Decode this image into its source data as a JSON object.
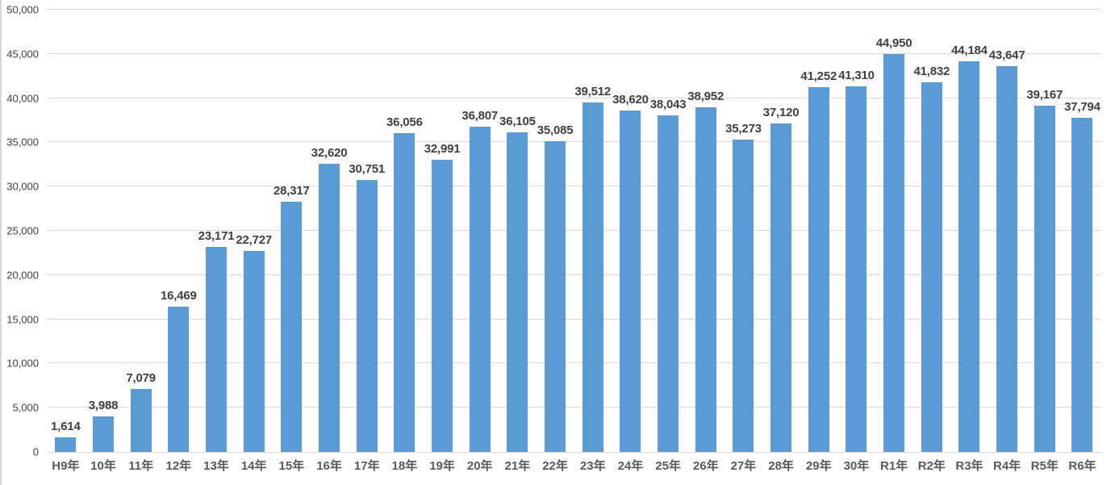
{
  "chart_data": {
    "type": "bar",
    "title": "",
    "xlabel": "",
    "ylabel": "",
    "categories": [
      "H9年",
      "10年",
      "11年",
      "12年",
      "13年",
      "14年",
      "15年",
      "16年",
      "17年",
      "18年",
      "19年",
      "20年",
      "21年",
      "22年",
      "23年",
      "24年",
      "25年",
      "26年",
      "27年",
      "28年",
      "29年",
      "30年",
      "R1年",
      "R2年",
      "R3年",
      "R4年",
      "R5年",
      "R6年"
    ],
    "values": [
      1614,
      3988,
      7079,
      16469,
      23171,
      22727,
      28317,
      32620,
      30751,
      36056,
      32991,
      36807,
      36105,
      35085,
      39512,
      38620,
      38043,
      38952,
      35273,
      37120,
      41252,
      41310,
      44950,
      41832,
      44184,
      43647,
      39167,
      37794
    ],
    "value_labels": [
      "1,614",
      "3,988",
      "7,079",
      "16,469",
      "23,171",
      "22,727",
      "28,317",
      "32,620",
      "30,751",
      "36,056",
      "32,991",
      "36,807",
      "36,105",
      "35,085",
      "39,512",
      "38,620",
      "38,043",
      "38,952",
      "35,273",
      "37,120",
      "41,252",
      "41,310",
      "44,950",
      "41,832",
      "44,184",
      "43,647",
      "39,167",
      "37,794"
    ],
    "ylim": [
      0,
      50000
    ],
    "ytick_interval": 5000,
    "ytick_labels": [
      "0",
      "5,000",
      "10,000",
      "15,000",
      "20,000",
      "25,000",
      "30,000",
      "35,000",
      "40,000",
      "45,000",
      "50,000"
    ],
    "grid": true,
    "legend": "none",
    "colors": {
      "bar": "#5b9bd5",
      "gridline": "#d9d9d9",
      "value_label": "#404040",
      "x_tick_label": "#595959",
      "y_tick_label": "#404040"
    }
  }
}
